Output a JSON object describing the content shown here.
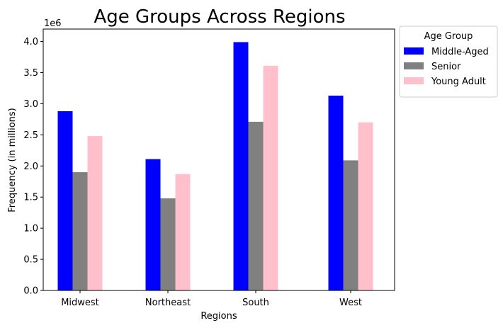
{
  "chart_data": {
    "type": "bar",
    "title": "Age Groups Across Regions",
    "xlabel": "Regions",
    "ylabel": "Frequency (in millions)",
    "offset_label": "1e6",
    "categories": [
      "Midwest",
      "Northeast",
      "South",
      "West"
    ],
    "series": [
      {
        "name": "Middle-Aged",
        "color": "#0000ff",
        "values": [
          2880000,
          2110000,
          3990000,
          3130000
        ]
      },
      {
        "name": "Senior",
        "color": "#808080",
        "values": [
          1900000,
          1480000,
          2710000,
          2090000
        ]
      },
      {
        "name": "Young Adult",
        "color": "#ffc0cb",
        "values": [
          2480000,
          1870000,
          3610000,
          2700000
        ]
      }
    ],
    "ylim": [
      0,
      4200000
    ],
    "yticks": [
      0,
      500000,
      1000000,
      1500000,
      2000000,
      2500000,
      3000000,
      3500000,
      4000000
    ],
    "ytick_labels": [
      "0.0",
      "0.5",
      "1.0",
      "1.5",
      "2.0",
      "2.5",
      "3.0",
      "3.5",
      "4.0"
    ],
    "legend": {
      "title": "Age Group",
      "placement": "outside-top-right"
    },
    "grid": false
  }
}
